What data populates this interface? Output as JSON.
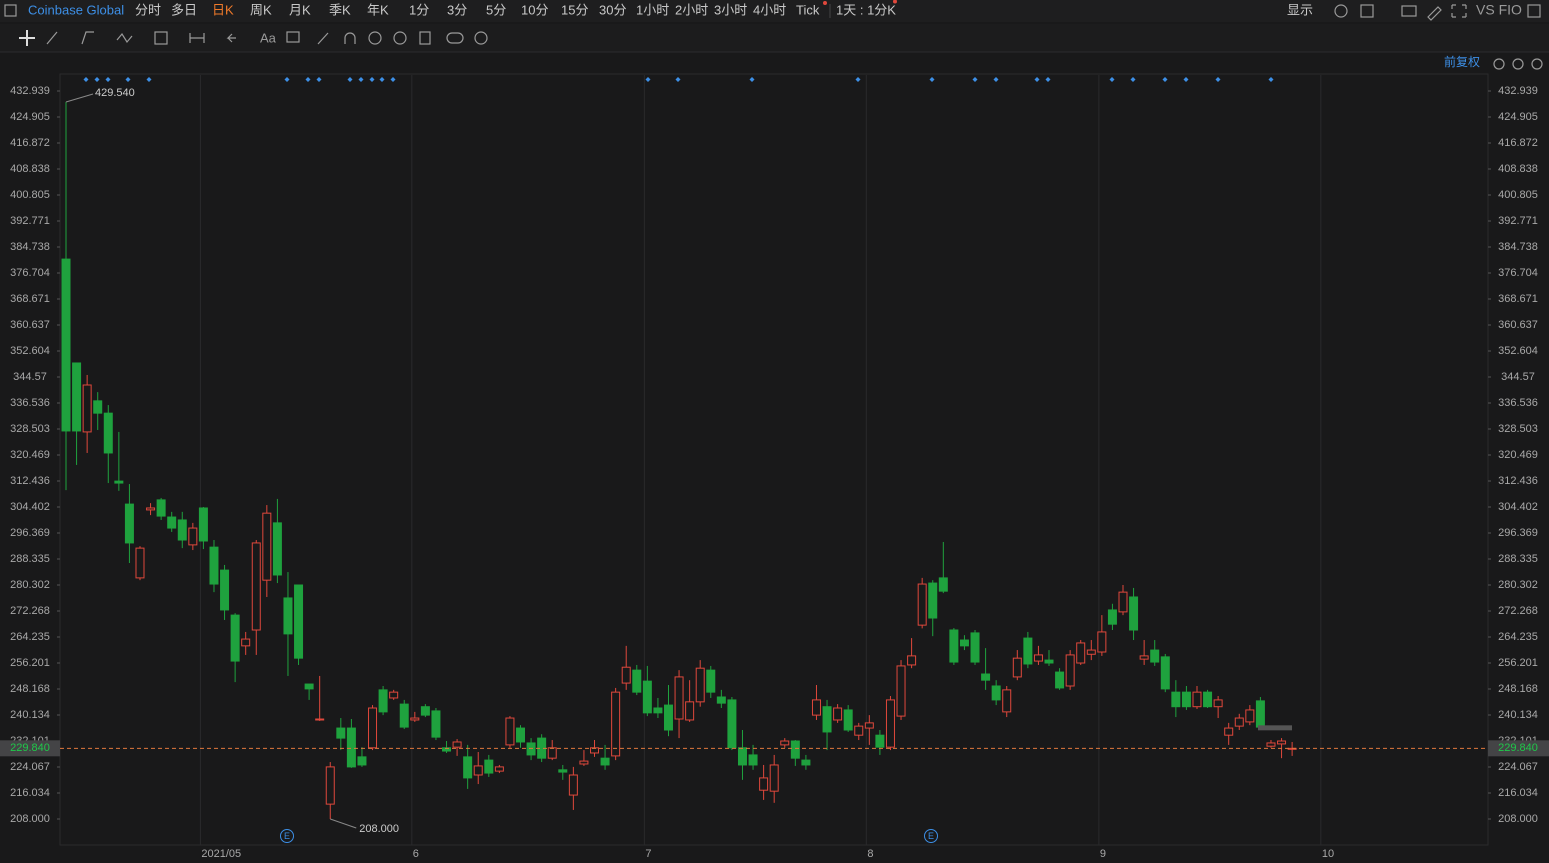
{
  "toolbar": {
    "symbol": "Coinbase Global",
    "periods": [
      "分时",
      "多日",
      "日K",
      "周K",
      "月K",
      "季K",
      "年K",
      "1分",
      "3分",
      "5分",
      "10分",
      "15分",
      "30分",
      "1小时",
      "2小时",
      "3小时",
      "4小时",
      "Tick"
    ],
    "active_period": "日K",
    "interval": "1天 : 1分K",
    "display": "显示",
    "compare": "VS FIO"
  },
  "drawing_tools": {
    "text_tool": "Aa"
  },
  "adjustment": "前复权",
  "earnings_markers": [
    "E",
    "E"
  ],
  "chart_data": {
    "type": "candlestick",
    "title": "Coinbase Global",
    "categories": [
      null,
      null,
      null,
      null,
      null,
      null,
      null,
      null,
      null,
      null,
      null,
      null,
      null,
      "2021/05",
      null,
      null,
      null,
      null,
      null,
      null,
      null,
      null,
      null,
      null,
      null,
      null,
      null,
      null,
      null,
      null,
      null,
      null,
      null,
      "6",
      null,
      null,
      null,
      null,
      null,
      null,
      null,
      null,
      null,
      null,
      null,
      null,
      null,
      null,
      null,
      null,
      null,
      null,
      null,
      null,
      null,
      "7",
      null,
      null,
      null,
      null,
      null,
      null,
      null,
      null,
      null,
      null,
      null,
      null,
      null,
      null,
      null,
      null,
      null,
      null,
      null,
      null,
      "8",
      null,
      null,
      null,
      null,
      null,
      null,
      null,
      null,
      null,
      null,
      null,
      null,
      null,
      null,
      null,
      null,
      null,
      null,
      null,
      null,
      null,
      "9",
      null,
      null,
      null,
      null,
      null,
      null,
      null,
      null,
      null,
      null,
      null,
      null,
      null,
      null,
      null,
      null,
      null,
      null,
      null,
      null,
      "10"
    ],
    "open": [
      381.0,
      348.9,
      327.6,
      337.2,
      333.4,
      312.4,
      305.3,
      282.5,
      303.5,
      306.6,
      301.3,
      300.4,
      292.7,
      304.1,
      292.0,
      284.9,
      271.0,
      261.5,
      266.4,
      281.8,
      299.5,
      276.3,
      280.3,
      249.7,
      238.6,
      212.6,
      236.1,
      236.1,
      227.2,
      230.0,
      247.9,
      245.4,
      243.5,
      238.6,
      242.7,
      241.4,
      230.0,
      230.2,
      227.2,
      221.6,
      226.2,
      222.8,
      230.9,
      236.1,
      231.5,
      233.0,
      226.8,
      223.2,
      215.4,
      225.0,
      228.4,
      226.8,
      227.5,
      250.0,
      254.0,
      250.6,
      242.3,
      243.2,
      238.9,
      238.6,
      244.2,
      254.0,
      245.7,
      244.8,
      230.0,
      227.8,
      216.9,
      216.6,
      230.9,
      232.1,
      226.2,
      240.1,
      242.7,
      238.6,
      241.7,
      233.9,
      236.1,
      233.9,
      230.2,
      239.8,
      255.6,
      267.9,
      280.9,
      282.5,
      266.4,
      263.3,
      265.5,
      252.8,
      249.1,
      241.1,
      251.9,
      263.9,
      256.8,
      257.1,
      253.4,
      249.1,
      256.2,
      258.9,
      259.6,
      272.6,
      272.0,
      276.6,
      257.4,
      260.2,
      258.1,
      247.2,
      247.2,
      242.7,
      247.2,
      242.7,
      233.9,
      236.7,
      238.0,
      244.5,
      230.5,
      231.2,
      229.6,
      null,
      null,
      null
    ],
    "high": [
      429.54,
      349.0,
      345.2,
      339.9,
      335.9,
      327.6,
      311.5,
      292.3,
      305.6,
      307.2,
      302.9,
      302.9,
      299.5,
      304.4,
      294.2,
      286.5,
      271.6,
      265.8,
      294.2,
      305.0,
      306.9,
      284.3,
      280.3,
      249.7,
      252.2,
      225.6,
      239.2,
      238.9,
      230.2,
      243.2,
      249.1,
      247.9,
      244.8,
      241.1,
      243.5,
      242.3,
      232.1,
      232.7,
      230.9,
      228.7,
      227.8,
      224.7,
      239.8,
      237.0,
      233.0,
      234.2,
      232.4,
      224.7,
      224.1,
      229.3,
      232.4,
      230.9,
      248.5,
      261.5,
      255.6,
      255.3,
      245.4,
      249.4,
      254.0,
      250.9,
      257.1,
      255.3,
      247.9,
      245.7,
      235.5,
      230.9,
      224.7,
      227.8,
      233.0,
      232.4,
      227.8,
      249.4,
      244.8,
      243.5,
      243.2,
      237.7,
      240.1,
      235.5,
      246.0,
      257.1,
      263.9,
      282.5,
      281.8,
      293.6,
      267.0,
      264.8,
      266.4,
      260.8,
      250.9,
      249.1,
      260.2,
      265.8,
      261.5,
      260.2,
      254.6,
      260.2,
      263.3,
      263.3,
      271.0,
      274.5,
      280.3,
      279.4,
      263.3,
      263.3,
      259.0,
      250.9,
      249.1,
      249.1,
      247.9,
      246.0,
      237.7,
      240.5,
      243.2,
      245.7,
      232.4,
      233.0,
      231.8,
      null,
      null,
      null
    ],
    "low": [
      309.6,
      317.4,
      321.1,
      328.2,
      311.8,
      309.4,
      287.1,
      281.8,
      301.9,
      300.4,
      296.7,
      291.7,
      291.1,
      291.4,
      278.1,
      269.5,
      250.3,
      258.7,
      258.7,
      276.6,
      280.9,
      252.2,
      255.6,
      244.8,
      238.3,
      208.0,
      229.3,
      223.8,
      224.1,
      229.3,
      240.1,
      244.8,
      235.8,
      238.0,
      239.5,
      232.4,
      228.4,
      227.5,
      217.3,
      218.8,
      221.0,
      222.2,
      230.0,
      230.0,
      226.2,
      225.6,
      226.2,
      220.1,
      210.8,
      224.4,
      227.2,
      223.2,
      226.2,
      247.9,
      246.3,
      239.8,
      239.2,
      233.6,
      233.0,
      238.0,
      242.7,
      245.4,
      242.3,
      229.3,
      220.1,
      223.2,
      213.9,
      213.0,
      230.0,
      224.4,
      223.2,
      238.6,
      229.3,
      237.7,
      234.9,
      232.4,
      230.9,
      227.8,
      229.3,
      238.6,
      254.6,
      266.9,
      264.5,
      277.8,
      255.6,
      260.2,
      255.6,
      247.9,
      243.2,
      239.5,
      250.9,
      254.6,
      255.6,
      255.3,
      247.9,
      247.9,
      255.6,
      257.1,
      258.4,
      266.4,
      271.0,
      263.3,
      255.6,
      255.3,
      247.2,
      239.5,
      241.7,
      242.0,
      242.3,
      239.2,
      230.9,
      235.5,
      237.0,
      235.5,
      230.0,
      226.8,
      227.5,
      null,
      null,
      null
    ],
    "close": [
      327.9,
      327.9,
      342.1,
      333.4,
      321.1,
      311.8,
      293.3,
      291.7,
      304.1,
      301.6,
      297.9,
      294.2,
      297.9,
      293.9,
      280.6,
      272.6,
      256.8,
      263.6,
      293.3,
      302.5,
      283.4,
      265.2,
      257.7,
      248.2,
      238.9,
      224.1,
      233.0,
      224.1,
      224.7,
      242.3,
      241.1,
      247.2,
      236.4,
      239.2,
      240.1,
      233.3,
      229.0,
      231.8,
      220.7,
      224.4,
      222.2,
      224.1,
      239.2,
      231.8,
      227.8,
      226.8,
      230.0,
      222.5,
      221.6,
      225.9,
      230.0,
      224.7,
      247.2,
      254.9,
      247.2,
      240.8,
      240.8,
      235.5,
      251.9,
      244.2,
      254.6,
      247.2,
      243.8,
      230.0,
      224.7,
      224.7,
      220.7,
      224.7,
      232.1,
      226.8,
      224.7,
      244.8,
      234.9,
      242.3,
      235.5,
      236.7,
      237.7,
      230.2,
      244.8,
      255.3,
      258.4,
      280.6,
      270.1,
      278.4,
      256.5,
      261.5,
      256.5,
      250.9,
      244.8,
      247.9,
      257.7,
      255.9,
      258.7,
      256.2,
      248.5,
      258.7,
      262.4,
      260.2,
      265.8,
      268.2,
      278.1,
      266.4,
      258.4,
      256.5,
      248.2,
      242.7,
      242.7,
      247.2,
      242.7,
      244.8,
      236.1,
      239.2,
      241.7,
      236.4,
      231.5,
      232.1,
      229.84,
      null,
      null,
      null
    ],
    "up_color": "#e0483c",
    "down_color": "#1fa23e",
    "hollow_up": true,
    "ylim": [
      199.97,
      437.88
    ],
    "yticks": [
      432.939,
      424.905,
      416.872,
      408.838,
      400.805,
      392.771,
      384.738,
      376.704,
      368.671,
      360.637,
      352.604,
      344.57,
      336.536,
      328.503,
      320.469,
      312.436,
      304.402,
      296.369,
      288.335,
      280.302,
      272.268,
      264.235,
      256.201,
      248.168,
      240.134,
      232.101,
      224.067,
      216.034,
      {
        "value": 208,
        "label": "208.000"
      }
    ],
    "last_price": {
      "value": 229.84,
      "label": "229.840"
    },
    "high_label": {
      "value": 429.54,
      "label": "429.540"
    },
    "low_label": {
      "value": 208,
      "label": "208.000"
    },
    "grid": true
  }
}
